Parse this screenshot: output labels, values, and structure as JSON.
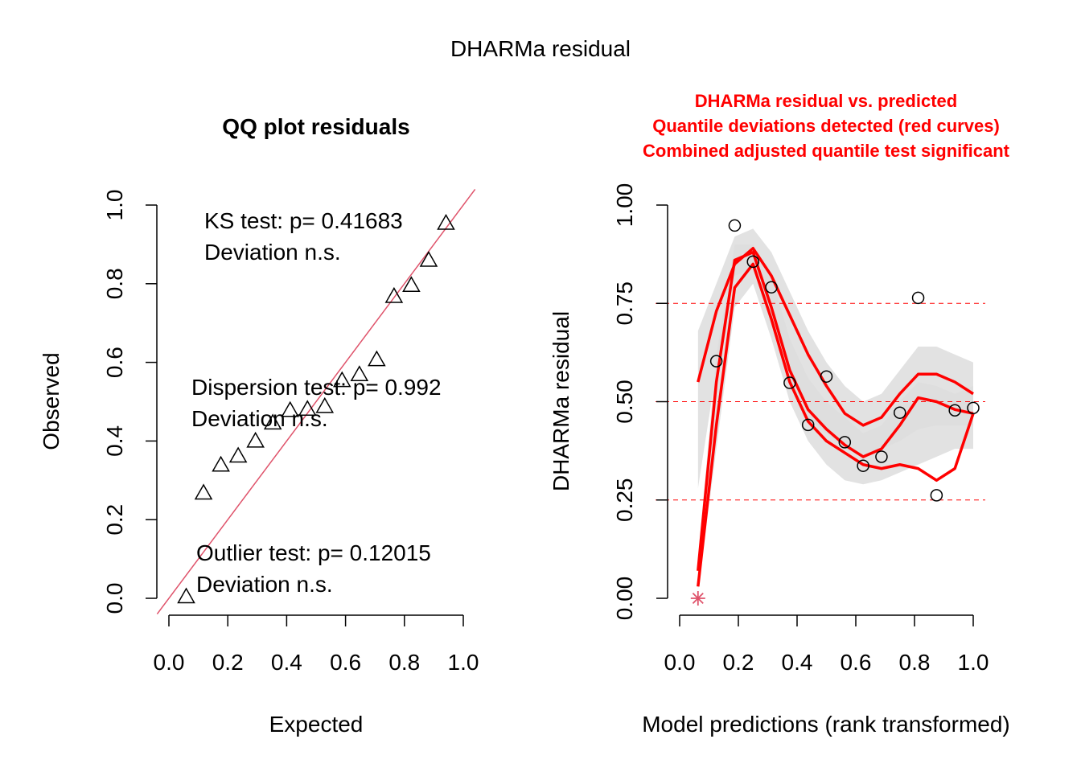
{
  "figure": {
    "title": "DHARMa residual"
  },
  "colors": {
    "ink": "#000000",
    "red_line": "#FF0000",
    "qq_line": "#DF536B",
    "band_light": "#DDDDDD",
    "band_dark": "#BFBFBF",
    "outlier": "#DF536B",
    "title_red": "#FF0000"
  },
  "chart_data": [
    {
      "type": "scatter",
      "title": "QQ plot residuals",
      "xlabel": "Expected",
      "ylabel": "Observed",
      "xlim": [
        0,
        1
      ],
      "ylim": [
        0,
        1
      ],
      "x_ticks": [
        "0.0",
        "0.2",
        "0.4",
        "0.6",
        "0.8",
        "1.0"
      ],
      "y_ticks": [
        "0.0",
        "0.2",
        "0.4",
        "0.6",
        "0.8",
        "1.0"
      ],
      "marker": "triangle-open",
      "points": {
        "x": [
          0.0588,
          0.1176,
          0.1765,
          0.2353,
          0.2941,
          0.3529,
          0.4118,
          0.4706,
          0.5294,
          0.5882,
          0.6471,
          0.7059,
          0.7647,
          0.8235,
          0.8824,
          0.9412
        ],
        "y": [
          0.004,
          0.268,
          0.339,
          0.362,
          0.4,
          0.446,
          0.478,
          0.481,
          0.488,
          0.554,
          0.569,
          0.607,
          0.768,
          0.796,
          0.86,
          0.954
        ]
      },
      "reference_line": {
        "slope": 1,
        "intercept": 0
      },
      "annotations": [
        {
          "lines": [
            "KS test: p= 0.41683",
            "Deviation  n.s."
          ]
        },
        {
          "lines": [
            "Dispersion test: p= 0.992",
            "Deviation  n.s."
          ]
        },
        {
          "lines": [
            "Outlier test: p= 0.12015",
            "Deviation  n.s."
          ]
        }
      ]
    },
    {
      "type": "scatter",
      "title_lines": [
        "DHARMa residual vs. predicted",
        "Quantile deviations detected (red curves)",
        "Combined adjusted quantile test significant"
      ],
      "xlabel": "Model predictions (rank transformed)",
      "ylabel": "DHARMa residual",
      "xlim": [
        0,
        1
      ],
      "ylim": [
        0,
        1
      ],
      "x_ticks": [
        "0.0",
        "0.2",
        "0.4",
        "0.6",
        "0.8",
        "1.0"
      ],
      "y_ticks": [
        "0.00",
        "0.25",
        "0.50",
        "0.75",
        "1.00"
      ],
      "reference_lines_y": [
        0.25,
        0.5,
        0.75
      ],
      "points": {
        "x": [
          0.125,
          0.1875,
          0.25,
          0.3125,
          0.375,
          0.4375,
          0.5,
          0.5625,
          0.625,
          0.6875,
          0.75,
          0.8125,
          0.875,
          0.9375,
          1.0
        ],
        "y": [
          0.603,
          0.948,
          0.856,
          0.791,
          0.548,
          0.441,
          0.564,
          0.397,
          0.337,
          0.36,
          0.472,
          0.764,
          0.262,
          0.478,
          0.484
        ]
      },
      "outlier_points": {
        "x": [
          0.0625
        ],
        "y": [
          0.0
        ]
      },
      "quantile_curves": [
        {
          "name": "q0.25",
          "x": [
            0.0625,
            0.125,
            0.1875,
            0.25,
            0.3125,
            0.375,
            0.4375,
            0.5,
            0.5625,
            0.625,
            0.6875,
            0.75,
            0.8125,
            0.875,
            0.9375,
            1.0
          ],
          "y": [
            0.03,
            0.44,
            0.79,
            0.85,
            0.71,
            0.55,
            0.45,
            0.4,
            0.37,
            0.34,
            0.33,
            0.34,
            0.33,
            0.3,
            0.33,
            0.47
          ]
        },
        {
          "name": "q0.5",
          "x": [
            0.0625,
            0.125,
            0.1875,
            0.25,
            0.3125,
            0.375,
            0.4375,
            0.5,
            0.5625,
            0.625,
            0.6875,
            0.75,
            0.8125,
            0.875,
            0.9375,
            1.0
          ],
          "y": [
            0.07,
            0.55,
            0.86,
            0.88,
            0.74,
            0.58,
            0.48,
            0.43,
            0.39,
            0.36,
            0.38,
            0.44,
            0.51,
            0.5,
            0.48,
            0.47
          ]
        },
        {
          "name": "q0.75",
          "x": [
            0.0625,
            0.125,
            0.1875,
            0.25,
            0.3125,
            0.375,
            0.4375,
            0.5,
            0.5625,
            0.625,
            0.6875,
            0.75,
            0.8125,
            0.875,
            0.9375,
            1.0
          ],
          "y": [
            0.55,
            0.73,
            0.85,
            0.89,
            0.82,
            0.72,
            0.62,
            0.54,
            0.47,
            0.44,
            0.46,
            0.52,
            0.57,
            0.57,
            0.55,
            0.52
          ]
        }
      ],
      "bands": [
        {
          "x": [
            0.0625,
            0.125,
            0.1875,
            0.25,
            0.3125,
            0.375,
            0.4375,
            0.5,
            0.5625,
            0.625,
            0.6875,
            0.75,
            0.8125,
            0.875,
            0.9375,
            1.0
          ],
          "lower": [
            0.02,
            0.38,
            0.74,
            0.8,
            0.66,
            0.5,
            0.4,
            0.34,
            0.3,
            0.29,
            0.3,
            0.32,
            0.34,
            0.36,
            0.38,
            0.38
          ],
          "upper": [
            0.1,
            0.62,
            0.9,
            0.9,
            0.82,
            0.66,
            0.56,
            0.5,
            0.46,
            0.42,
            0.44,
            0.5,
            0.55,
            0.54,
            0.52,
            0.54
          ]
        },
        {
          "x": [
            0.0625,
            0.125,
            0.1875,
            0.25,
            0.3125,
            0.375,
            0.4375,
            0.5,
            0.5625,
            0.625,
            0.6875,
            0.75,
            0.8125,
            0.875,
            0.9375,
            1.0
          ],
          "lower": [
            0.28,
            0.58,
            0.82,
            0.84,
            0.72,
            0.56,
            0.46,
            0.42,
            0.38,
            0.36,
            0.38,
            0.4,
            0.43,
            0.44,
            0.44,
            0.44
          ],
          "upper": [
            0.68,
            0.8,
            0.92,
            0.94,
            0.88,
            0.78,
            0.68,
            0.6,
            0.54,
            0.5,
            0.52,
            0.58,
            0.64,
            0.64,
            0.62,
            0.6
          ]
        }
      ]
    }
  ]
}
